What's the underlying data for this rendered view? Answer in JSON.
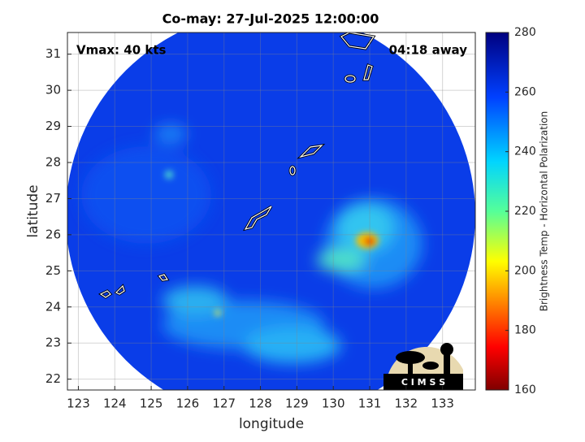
{
  "map": {
    "title": "Co-may: 27-Jul-2025 12:00:00",
    "annotations": {
      "left": "Vmax: 40 kts",
      "right": "04:18 away"
    },
    "xlabel": "longitude",
    "ylabel": "latitude",
    "xlim": [
      122.7,
      133.9
    ],
    "ylim": [
      21.7,
      31.6
    ],
    "xticks": [
      123,
      124,
      125,
      126,
      127,
      128,
      129,
      130,
      131,
      132,
      133
    ],
    "yticks": [
      22,
      23,
      24,
      25,
      26,
      27,
      28,
      29,
      30,
      31
    ],
    "colorbar": {
      "label": "Brightness Temp - Horizontal Polarization",
      "lim": [
        160,
        280
      ],
      "ticks": [
        160,
        180,
        200,
        220,
        240,
        260,
        280
      ]
    },
    "logo": "C I M S S"
  }
}
